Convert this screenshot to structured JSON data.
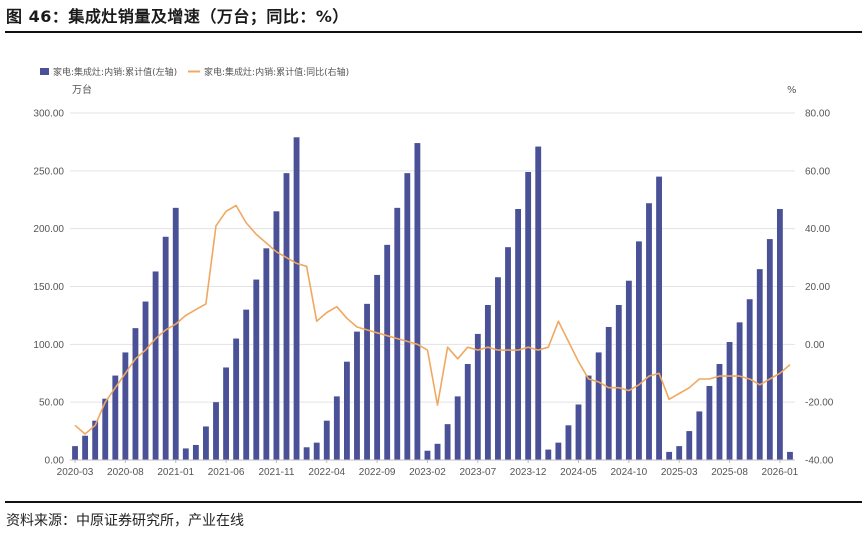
{
  "figure_title": "图 46：集成灶销量及增速（万台；同比：%）",
  "source_text": "资料来源：中原证券研究所，产业在线",
  "chart_data": {
    "type": "bar+line",
    "left_unit": "万台",
    "right_unit": "%",
    "left_ylim": [
      0,
      300
    ],
    "right_ylim": [
      -40,
      80
    ],
    "left_ticks": [
      "0.00",
      "50.00",
      "100.00",
      "150.00",
      "200.00",
      "250.00",
      "300.00"
    ],
    "right_ticks": [
      "-40.00",
      "-20.00",
      "0.00",
      "20.00",
      "40.00",
      "60.00",
      "80.00"
    ],
    "x_tick_labels": [
      "2020-03",
      "2020-08",
      "2021-01",
      "2021-06",
      "2021-11",
      "2022-04",
      "2022-09",
      "2023-02",
      "2023-07",
      "2023-12",
      "2024-05",
      "2024-10",
      "2025-03",
      "2025-08",
      "2026-01"
    ],
    "x_tick_positions": [
      0,
      5,
      10,
      15,
      20,
      25,
      30,
      35,
      40,
      45,
      50,
      55,
      60,
      65,
      70
    ],
    "bar_color": "#4a5196",
    "line_color": "#f0a860",
    "grid": true,
    "legend_position": "top-left",
    "series": [
      {
        "name": "家电:集成灶:内销:累计值(左轴)",
        "axis": "left",
        "type": "bar",
        "values": [
          12,
          21,
          34,
          53,
          73,
          93,
          114,
          137,
          163,
          193,
          218,
          10,
          13,
          29,
          50,
          80,
          105,
          130,
          156,
          183,
          215,
          248,
          279,
          11,
          15,
          34,
          55,
          85,
          111,
          135,
          160,
          186,
          218,
          248,
          274,
          8,
          14,
          31,
          55,
          83,
          109,
          134,
          158,
          184,
          217,
          249,
          271,
          9,
          15,
          30,
          48,
          73,
          93,
          115,
          134,
          155,
          189,
          222,
          245,
          7,
          12,
          25,
          42,
          64,
          83,
          102,
          119,
          139,
          165,
          191,
          217,
          7
        ]
      },
      {
        "name": "家电:集成灶:内销:累计值:同比(右轴)",
        "axis": "right",
        "type": "line",
        "values": [
          -28,
          -31,
          -28,
          -20,
          -15,
          -10,
          -5,
          -2,
          2,
          5,
          7,
          10,
          12,
          14,
          41,
          46,
          48,
          42,
          38,
          35,
          32,
          30,
          28,
          27,
          8,
          11,
          13,
          9,
          6,
          5,
          4,
          3,
          2,
          1,
          0,
          -2,
          -21,
          -1,
          -5,
          -1,
          -2,
          -1,
          -2,
          -2,
          -2,
          -1,
          -2,
          -1,
          8,
          1,
          -6,
          -12,
          -13,
          -15,
          -15,
          -16,
          -14,
          -11,
          -10,
          -19,
          -17,
          -15,
          -12,
          -12,
          -11,
          -11,
          -11,
          -12,
          -14,
          -12,
          -10,
          -7
        ]
      }
    ]
  }
}
